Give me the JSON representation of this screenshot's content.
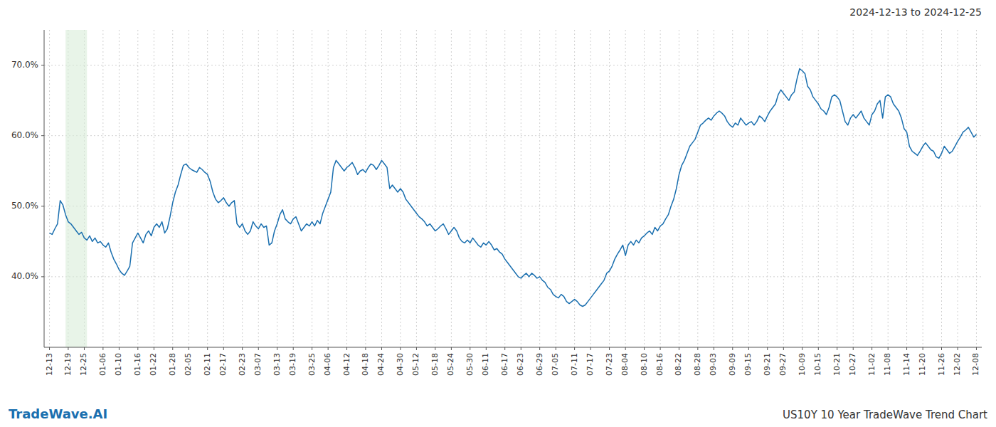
{
  "chart_data": {
    "type": "line",
    "annotations": [
      "2024-12-13 to 2024-12-25",
      "TradeWave.AI",
      "US10Y 10 Year TradeWave Trend Chart"
    ],
    "color": "#1a6faf",
    "grid": true,
    "ylim": [
      30,
      75
    ],
    "yticks": [
      {
        "value": 40.0,
        "label": "40.0%"
      },
      {
        "value": 50.0,
        "label": "50.0%"
      },
      {
        "value": 60.0,
        "label": "60.0%"
      },
      {
        "value": 70.0,
        "label": "70.0%"
      }
    ],
    "highlight": {
      "start": 6,
      "end": 14,
      "color": "#d8edd8"
    },
    "categories": [
      "12-13",
      null,
      null,
      null,
      null,
      null,
      null,
      "12-19",
      null,
      null,
      null,
      null,
      null,
      "12-25",
      null,
      null,
      null,
      null,
      null,
      null,
      "01-06",
      null,
      null,
      null,
      null,
      null,
      "01-10",
      null,
      null,
      null,
      null,
      null,
      null,
      "01-16",
      null,
      null,
      null,
      null,
      null,
      "01-22",
      null,
      null,
      null,
      null,
      null,
      null,
      "01-28",
      null,
      null,
      null,
      null,
      null,
      "02-05",
      null,
      null,
      null,
      null,
      null,
      null,
      "02-11",
      null,
      null,
      null,
      null,
      null,
      "02-17",
      null,
      null,
      null,
      null,
      null,
      null,
      "02-23",
      null,
      null,
      null,
      null,
      null,
      "03-07",
      null,
      null,
      null,
      null,
      null,
      null,
      "03-13",
      null,
      null,
      null,
      null,
      null,
      "03-19",
      null,
      null,
      null,
      null,
      null,
      null,
      "03-25",
      null,
      null,
      null,
      null,
      null,
      "04-06",
      null,
      null,
      null,
      null,
      null,
      null,
      "04-12",
      null,
      null,
      null,
      null,
      null,
      null,
      "04-18",
      null,
      null,
      null,
      null,
      null,
      "04-24",
      null,
      null,
      null,
      null,
      null,
      null,
      "04-30",
      null,
      null,
      null,
      null,
      null,
      "05-12",
      null,
      null,
      null,
      null,
      null,
      null,
      "05-18",
      null,
      null,
      null,
      null,
      null,
      "05-24",
      null,
      null,
      null,
      null,
      null,
      null,
      "05-30",
      null,
      null,
      null,
      null,
      null,
      "06-11",
      null,
      null,
      null,
      null,
      null,
      null,
      "06-17",
      null,
      null,
      null,
      null,
      null,
      "06-23",
      null,
      null,
      null,
      null,
      null,
      null,
      "06-29",
      null,
      null,
      null,
      null,
      null,
      "07-05",
      null,
      null,
      null,
      null,
      null,
      null,
      "07-11",
      null,
      null,
      null,
      null,
      null,
      "07-17",
      null,
      null,
      null,
      null,
      null,
      null,
      "07-23",
      null,
      null,
      null,
      null,
      null,
      "08-04",
      null,
      null,
      null,
      null,
      null,
      null,
      "08-10",
      null,
      null,
      null,
      null,
      null,
      "08-16",
      null,
      null,
      null,
      null,
      null,
      null,
      "08-22",
      null,
      null,
      null,
      null,
      null,
      null,
      "08-28",
      null,
      null,
      null,
      null,
      null,
      "09-03",
      null,
      null,
      null,
      null,
      null,
      null,
      "09-09",
      null,
      null,
      null,
      null,
      null,
      "09-15",
      null,
      null,
      null,
      null,
      null,
      null,
      "09-21",
      null,
      null,
      null,
      null,
      null,
      "09-27",
      null,
      null,
      null,
      null,
      null,
      null,
      "10-09",
      null,
      null,
      null,
      null,
      null,
      "10-15",
      null,
      null,
      null,
      null,
      null,
      null,
      "10-21",
      null,
      null,
      null,
      null,
      null,
      "10-27",
      null,
      null,
      null,
      null,
      null,
      null,
      "11-02",
      null,
      null,
      null,
      null,
      null,
      "11-08",
      null,
      null,
      null,
      null,
      null,
      null,
      "11-14",
      null,
      null,
      null,
      null,
      null,
      "11-20",
      null,
      null,
      null,
      null,
      null,
      null,
      "11-26",
      null,
      null,
      null,
      null,
      null,
      "12-02",
      null,
      null,
      null,
      null,
      null,
      null,
      "12-08"
    ],
    "values": [
      46.2,
      46.0,
      46.8,
      47.5,
      50.8,
      50.2,
      48.8,
      47.8,
      47.5,
      47.0,
      46.5,
      46.0,
      46.3,
      45.5,
      45.2,
      45.8,
      45.0,
      45.5,
      44.8,
      45.0,
      44.5,
      44.2,
      44.8,
      43.5,
      42.5,
      41.8,
      41.0,
      40.5,
      40.2,
      40.8,
      41.5,
      44.8,
      45.5,
      46.2,
      45.5,
      44.8,
      46.0,
      46.5,
      45.8,
      47.0,
      47.5,
      47.0,
      47.8,
      46.2,
      46.8,
      48.5,
      50.5,
      52.0,
      53.0,
      54.5,
      55.8,
      56.0,
      55.5,
      55.2,
      55.0,
      54.8,
      55.5,
      55.2,
      54.8,
      54.5,
      53.5,
      52.0,
      51.0,
      50.5,
      50.8,
      51.2,
      50.5,
      50.0,
      50.5,
      50.8,
      47.5,
      47.0,
      47.5,
      46.5,
      46.0,
      46.5,
      47.8,
      47.2,
      46.8,
      47.5,
      47.0,
      47.2,
      44.5,
      44.8,
      46.5,
      47.5,
      48.8,
      49.5,
      48.2,
      47.8,
      47.5,
      48.2,
      48.5,
      47.5,
      46.5,
      47.0,
      47.5,
      47.2,
      47.8,
      47.2,
      48.0,
      47.5,
      49.0,
      50.0,
      51.0,
      52.0,
      55.5,
      56.5,
      56.0,
      55.5,
      55.0,
      55.5,
      55.8,
      56.2,
      55.5,
      54.5,
      55.0,
      55.2,
      54.8,
      55.5,
      56.0,
      55.8,
      55.2,
      55.8,
      56.5,
      56.0,
      55.5,
      52.5,
      53.0,
      52.5,
      52.0,
      52.5,
      52.0,
      51.0,
      50.5,
      50.0,
      49.5,
      49.0,
      48.5,
      48.2,
      47.8,
      47.2,
      47.5,
      47.0,
      46.5,
      46.8,
      47.2,
      47.5,
      46.8,
      46.0,
      46.5,
      47.0,
      46.5,
      45.5,
      45.0,
      44.8,
      45.2,
      44.8,
      45.5,
      45.0,
      44.5,
      44.2,
      44.8,
      44.5,
      45.0,
      44.5,
      43.8,
      44.0,
      43.5,
      43.2,
      42.5,
      42.0,
      41.5,
      41.0,
      40.5,
      40.0,
      39.8,
      40.2,
      40.5,
      40.0,
      40.5,
      40.2,
      39.8,
      40.0,
      39.5,
      39.2,
      38.5,
      38.2,
      37.5,
      37.2,
      37.0,
      37.5,
      37.2,
      36.5,
      36.2,
      36.5,
      36.8,
      36.5,
      36.0,
      35.8,
      36.0,
      36.5,
      37.0,
      37.5,
      38.0,
      38.5,
      39.0,
      39.5,
      40.5,
      40.8,
      41.5,
      42.5,
      43.2,
      43.8,
      44.5,
      43.0,
      44.5,
      45.0,
      44.5,
      45.2,
      44.8,
      45.5,
      45.8,
      46.2,
      46.5,
      46.0,
      47.0,
      46.5,
      47.2,
      47.5,
      48.2,
      48.8,
      50.0,
      51.0,
      52.5,
      54.5,
      55.8,
      56.5,
      57.5,
      58.5,
      59.0,
      59.5,
      60.5,
      61.5,
      61.8,
      62.2,
      62.5,
      62.2,
      62.8,
      63.2,
      63.5,
      63.2,
      62.8,
      62.0,
      61.5,
      61.2,
      61.8,
      61.5,
      62.5,
      62.0,
      61.5,
      61.8,
      62.0,
      61.5,
      62.0,
      62.8,
      62.5,
      62.0,
      62.8,
      63.5,
      64.0,
      64.5,
      65.8,
      66.5,
      66.0,
      65.5,
      65.0,
      65.8,
      66.2,
      68.0,
      69.5,
      69.2,
      68.8,
      67.0,
      66.5,
      65.5,
      65.0,
      64.5,
      63.8,
      63.5,
      63.0,
      64.0,
      65.5,
      65.8,
      65.5,
      65.0,
      63.5,
      62.0,
      61.5,
      62.5,
      63.0,
      62.5,
      63.0,
      63.5,
      62.5,
      62.0,
      61.5,
      63.0,
      63.5,
      64.5,
      65.0,
      62.5,
      65.5,
      65.8,
      65.5,
      64.5,
      64.0,
      63.5,
      62.5,
      61.0,
      60.5,
      58.5,
      57.8,
      57.5,
      57.2,
      57.8,
      58.5,
      59.0,
      58.5,
      58.0,
      57.8,
      57.0,
      56.8,
      57.5,
      58.5,
      58.0,
      57.5,
      57.8,
      58.5,
      59.2,
      59.8,
      60.5,
      60.8,
      61.2,
      60.5,
      59.8,
      60.2
    ]
  }
}
